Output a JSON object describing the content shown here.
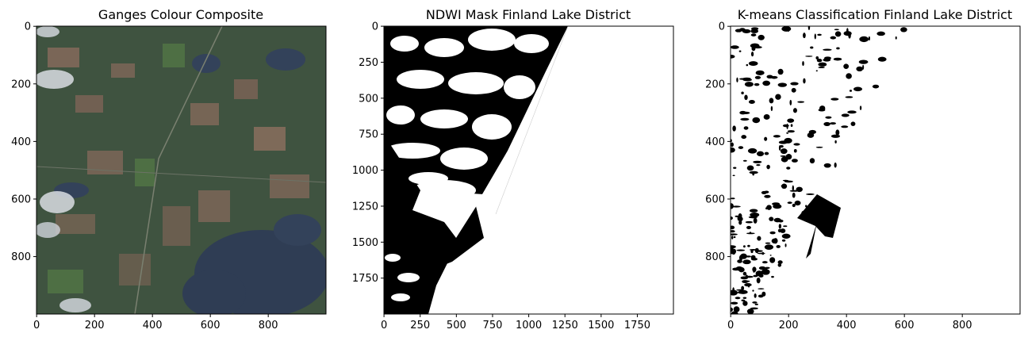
{
  "chart_data": [
    {
      "type": "image",
      "title": "Ganges Colour Composite",
      "xlim": [
        0,
        999
      ],
      "ylim": [
        999,
        0
      ],
      "xticks": [
        "0",
        "200",
        "400",
        "600",
        "800"
      ],
      "yticks": [
        "0",
        "200",
        "400",
        "600",
        "800"
      ],
      "palette": {
        "base": "#3b4f43",
        "water": "#2f3d54",
        "field": "#8a6b5c",
        "green": "#4a6a3f",
        "cloud": "#d9dde3"
      }
    },
    {
      "type": "image",
      "title": "NDWI Mask Finland Lake District",
      "xlim": [
        0,
        1999
      ],
      "ylim": [
        1999,
        0
      ],
      "xticks": [
        "0",
        "250",
        "500",
        "750",
        "1000",
        "1250",
        "1500",
        "1750"
      ],
      "yticks": [
        "0",
        "250",
        "500",
        "750",
        "1000",
        "1250",
        "1500",
        "1750"
      ],
      "palette": {
        "land": "#ffffff",
        "water": "#000000"
      }
    },
    {
      "type": "image",
      "title": "K-means Classification Finland Lake District",
      "xlim": [
        0,
        999
      ],
      "ylim": [
        999,
        0
      ],
      "xticks": [
        "0",
        "200",
        "400",
        "600",
        "800"
      ],
      "yticks": [
        "0",
        "200",
        "400",
        "600",
        "800"
      ],
      "palette": {
        "class0": "#ffffff",
        "class1": "#000000"
      }
    }
  ]
}
